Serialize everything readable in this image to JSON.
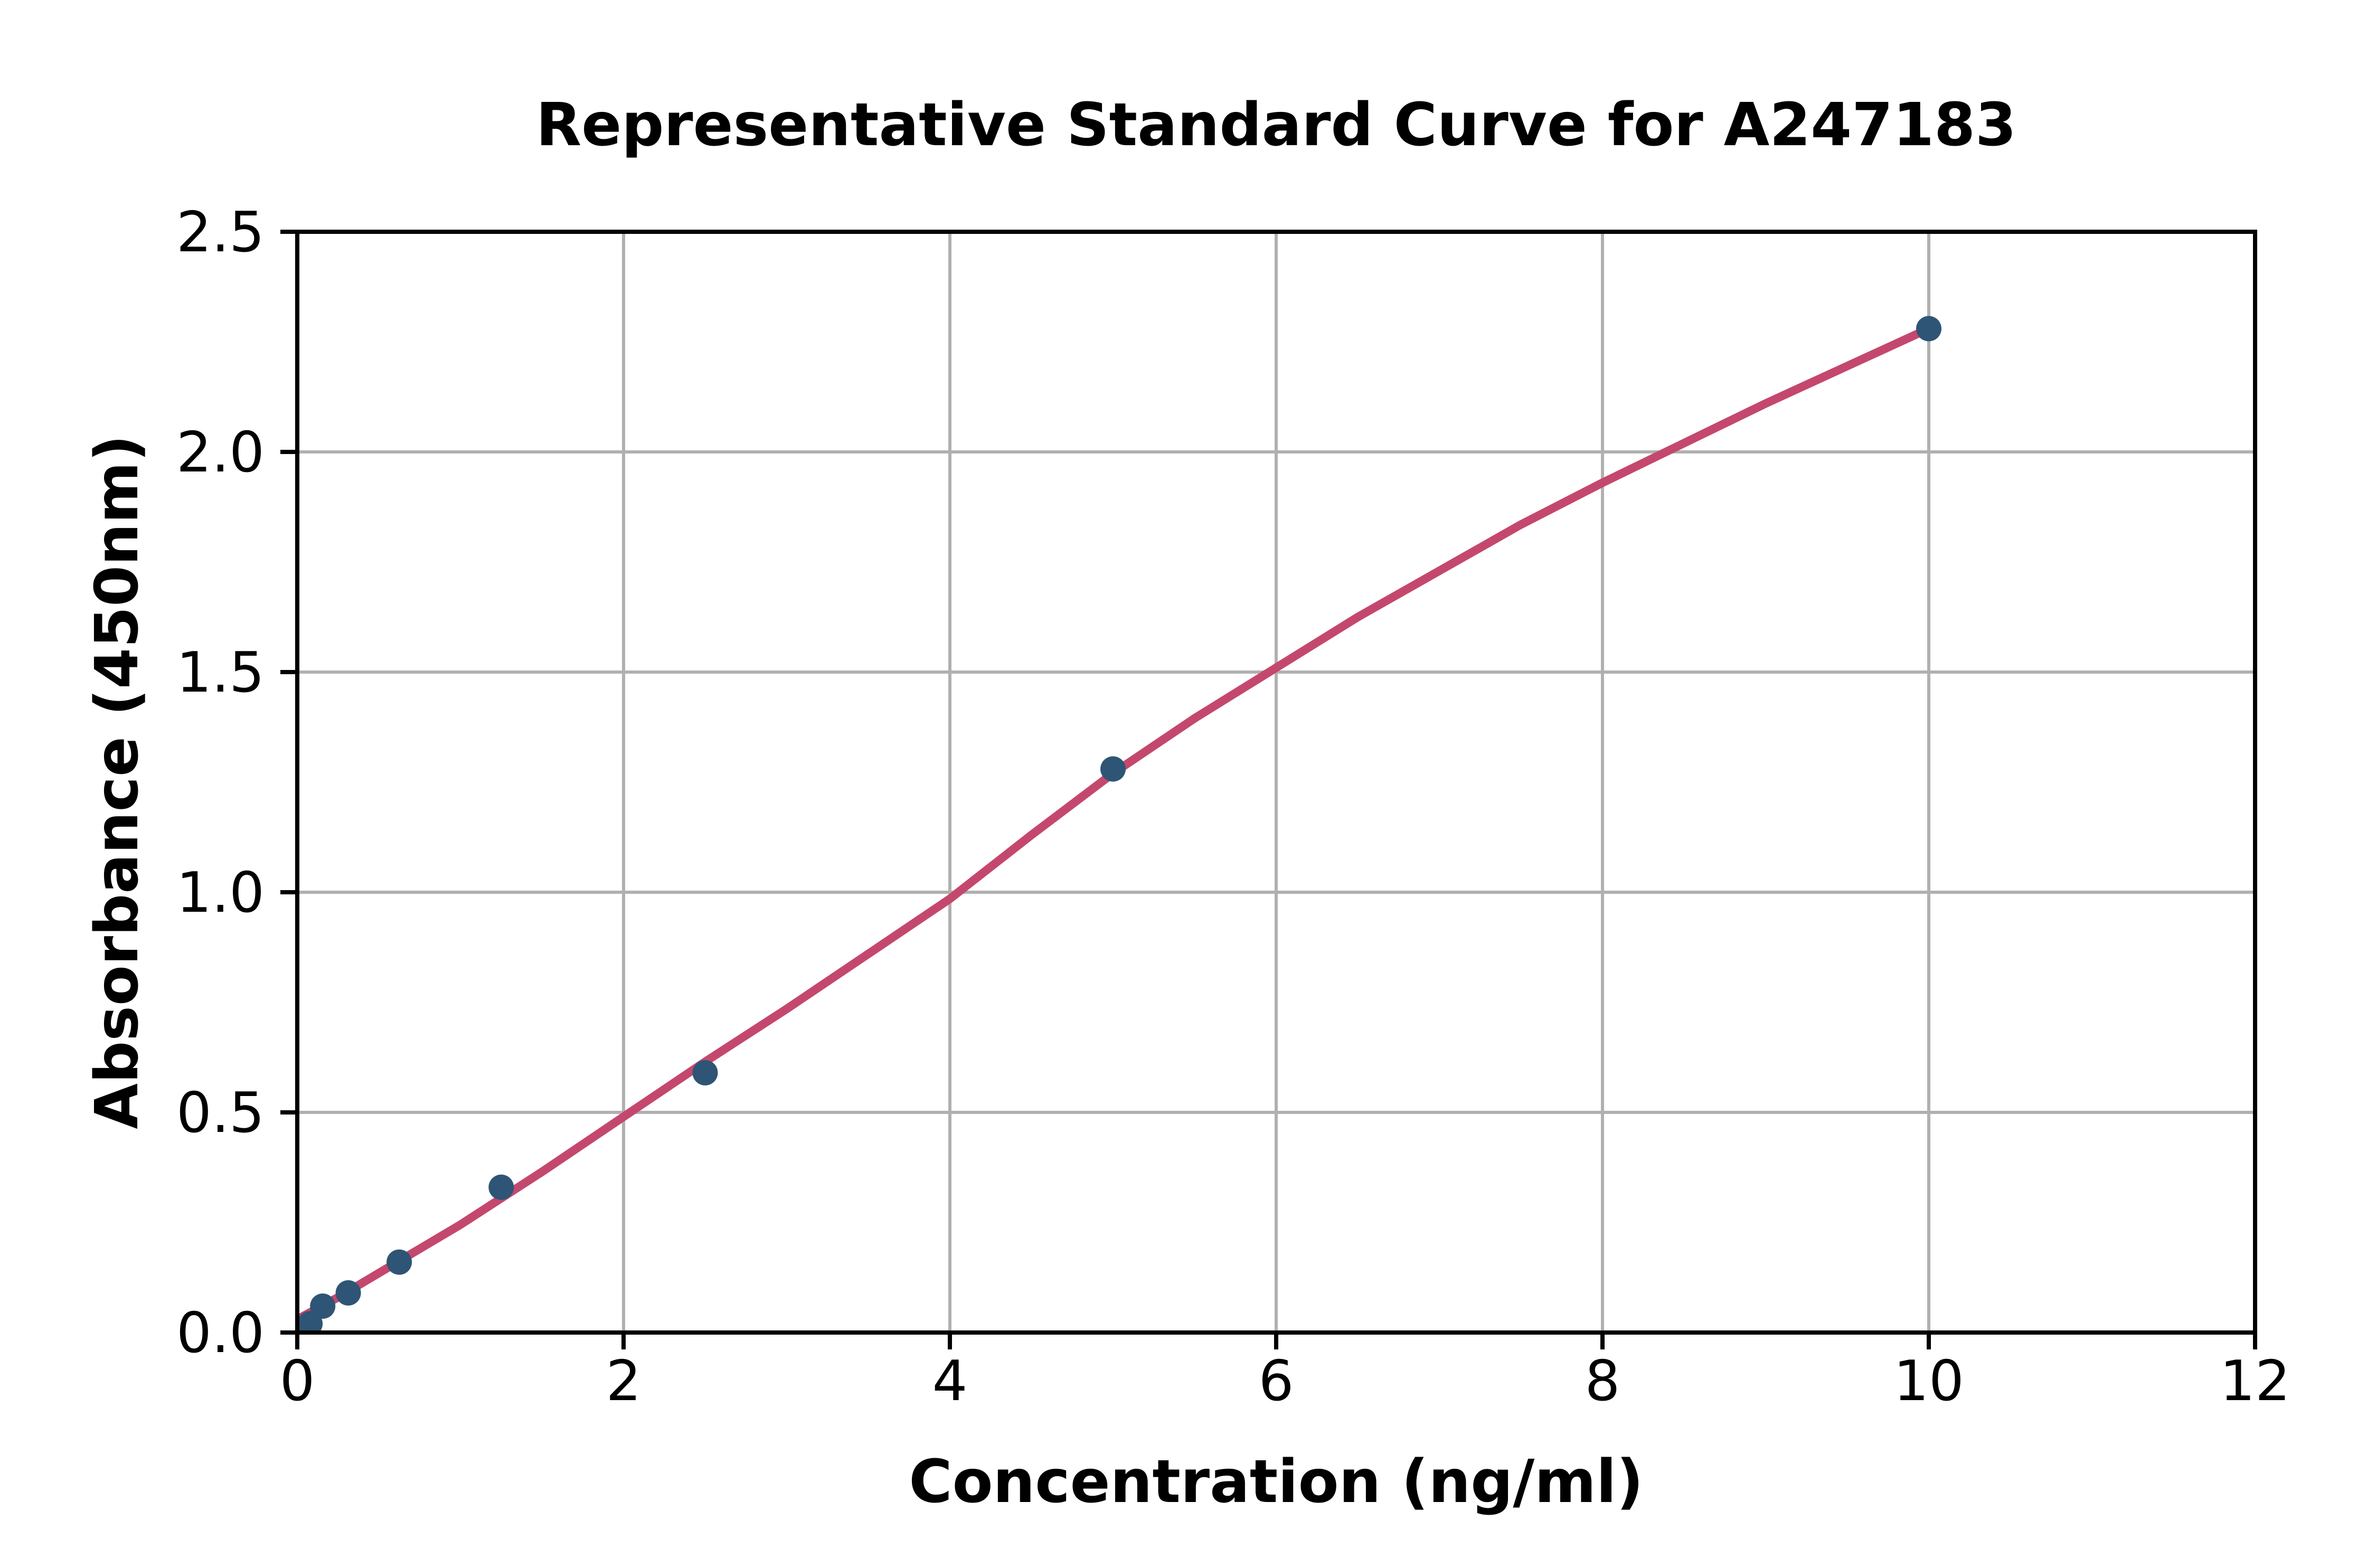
{
  "chart_data": {
    "type": "scatter",
    "title": "Representative Standard Curve for A247183",
    "xlabel": "Concentration (ng/ml)",
    "ylabel": "Absorbance (450nm)",
    "xlim": [
      0,
      12
    ],
    "ylim": [
      0.0,
      2.5
    ],
    "grid": true,
    "x_ticks": {
      "values": [
        0,
        2,
        4,
        6,
        8,
        10,
        12
      ],
      "labels": [
        "0",
        "2",
        "4",
        "6",
        "8",
        "10",
        "12"
      ]
    },
    "y_ticks": {
      "values": [
        0.0,
        0.5,
        1.0,
        1.5,
        2.0,
        2.5
      ],
      "labels": [
        "0.0",
        "0.5",
        "1.0",
        "1.5",
        "2.0",
        "2.5"
      ]
    },
    "series": [
      {
        "name": "standard-points",
        "type": "scatter",
        "x": [
          0.078,
          0.156,
          0.3125,
          0.625,
          1.25,
          2.5,
          5,
          10
        ],
        "y": [
          0.02,
          0.06,
          0.09,
          0.16,
          0.33,
          0.59,
          1.28,
          2.28
        ]
      },
      {
        "name": "fit-curve",
        "type": "line",
        "x": [
          0,
          0.25,
          0.5,
          0.75,
          1,
          1.5,
          2,
          2.5,
          3,
          3.5,
          4,
          4.5,
          5,
          5.5,
          6,
          6.5,
          7,
          7.5,
          8,
          8.5,
          9,
          9.5,
          10
        ],
        "y": [
          0.03,
          0.08,
          0.135,
          0.19,
          0.245,
          0.365,
          0.49,
          0.615,
          0.735,
          0.86,
          0.985,
          1.13,
          1.27,
          1.395,
          1.51,
          1.625,
          1.73,
          1.835,
          1.93,
          2.02,
          2.11,
          2.195,
          2.28
        ]
      }
    ],
    "colors": {
      "point": "#2e5575",
      "line": "#c4486e",
      "grid": "#b0b0b0",
      "spine": "#000000",
      "text": "#000000",
      "background": "#ffffff"
    }
  }
}
